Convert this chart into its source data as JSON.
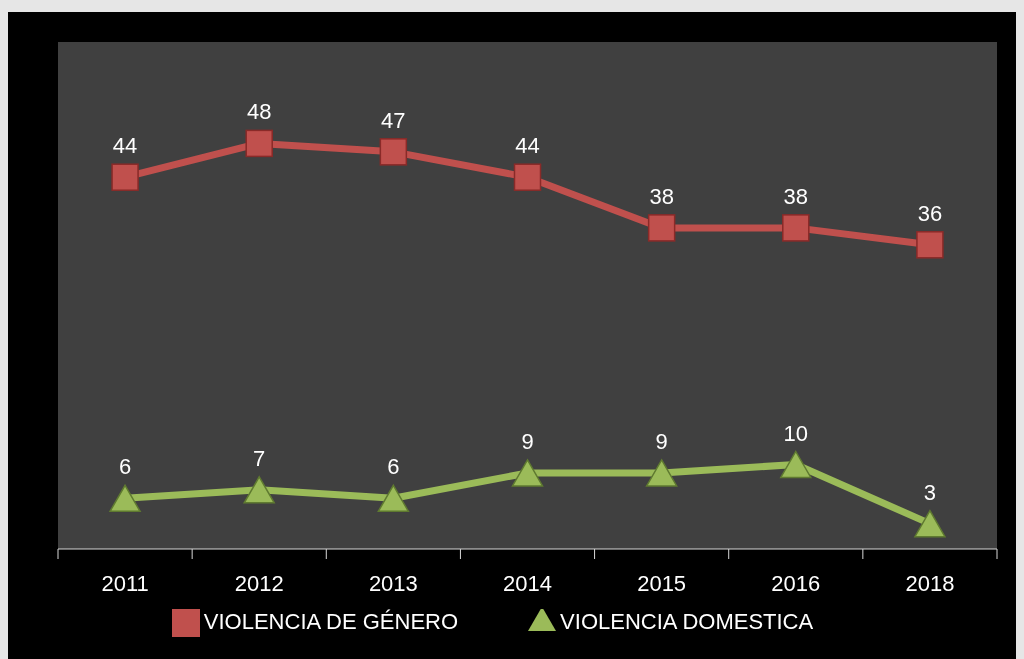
{
  "chart_data": {
    "type": "line",
    "categories": [
      "2011",
      "2012",
      "2013",
      "2014",
      "2015",
      "2016",
      "2018"
    ],
    "series": [
      {
        "name": "VIOLENCIA DE GÉNERO",
        "color": "#c0504d",
        "marker": "square",
        "values": [
          44,
          48,
          47,
          44,
          38,
          38,
          36
        ]
      },
      {
        "name": "VIOLENCIA DOMESTICA",
        "color": "#9bbb59",
        "marker": "triangle",
        "values": [
          6,
          7,
          6,
          9,
          9,
          10,
          3
        ]
      }
    ],
    "data_labels": true,
    "grid": false,
    "legend": "bottom"
  }
}
